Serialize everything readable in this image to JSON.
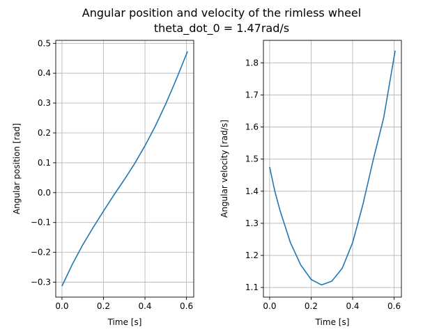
{
  "figure": {
    "title_line1": "Angular position and velocity of the rimless wheel",
    "title_line2": "theta_dot_0 = 1.47rad/s"
  },
  "chart_data": [
    {
      "type": "line",
      "xlabel": "Time [s]",
      "ylabel": "Angular position [rad]",
      "xlim": [
        -0.03,
        0.635
      ],
      "ylim": [
        -0.35,
        0.51
      ],
      "xticks": [
        0.0,
        0.2,
        0.4,
        0.6
      ],
      "xtick_labels": [
        "0.0",
        "0.2",
        "0.4",
        "0.6"
      ],
      "yticks": [
        -0.3,
        -0.2,
        -0.1,
        0.0,
        0.1,
        0.2,
        0.3,
        0.4,
        0.5
      ],
      "ytick_labels": [
        "−0.3",
        "−0.2",
        "−0.1",
        "0.0",
        "0.1",
        "0.2",
        "0.3",
        "0.4",
        "0.5"
      ],
      "grid": true,
      "color": "#1f77b4",
      "series": [
        {
          "x": [
            0.0,
            0.05,
            0.1,
            0.15,
            0.2,
            0.25,
            0.3,
            0.35,
            0.4,
            0.45,
            0.5,
            0.55,
            0.605
          ],
          "values": [
            -0.313,
            -0.24,
            -0.175,
            -0.117,
            -0.062,
            -0.008,
            0.043,
            0.097,
            0.157,
            0.223,
            0.297,
            0.378,
            0.473
          ]
        }
      ]
    },
    {
      "type": "line",
      "xlabel": "Time [s]",
      "ylabel": "Angular velocity [rad/s]",
      "xlim": [
        -0.03,
        0.635
      ],
      "ylim": [
        1.07,
        1.87
      ],
      "xticks": [
        0.0,
        0.2,
        0.4,
        0.6
      ],
      "xtick_labels": [
        "0.0",
        "0.2",
        "0.4",
        "0.6"
      ],
      "yticks": [
        1.1,
        1.2,
        1.3,
        1.4,
        1.5,
        1.6,
        1.7,
        1.8
      ],
      "ytick_labels": [
        "1.1",
        "1.2",
        "1.3",
        "1.4",
        "1.5",
        "1.6",
        "1.7",
        "1.8"
      ],
      "grid": true,
      "color": "#1f77b4",
      "series": [
        {
          "x": [
            0.0,
            0.025,
            0.05,
            0.1,
            0.15,
            0.2,
            0.25,
            0.3,
            0.35,
            0.4,
            0.45,
            0.5,
            0.55,
            0.605
          ],
          "values": [
            1.475,
            1.4,
            1.34,
            1.24,
            1.17,
            1.125,
            1.108,
            1.12,
            1.16,
            1.24,
            1.36,
            1.5,
            1.63,
            1.838
          ]
        }
      ]
    }
  ]
}
